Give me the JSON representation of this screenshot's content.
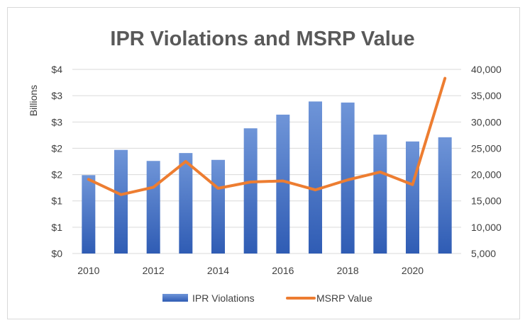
{
  "chart_data": {
    "type": "bar",
    "title": "IPR Violations and MSRP Value",
    "ylabel": "Billions",
    "xlabel": "",
    "categories": [
      2010,
      2011,
      2012,
      2013,
      2014,
      2015,
      2016,
      2017,
      2018,
      2019,
      2020,
      2021
    ],
    "x_tick_labels": [
      "2010",
      "2012",
      "2014",
      "2016",
      "2018",
      "2020"
    ],
    "y_left_ticks": [
      "$0",
      "$1",
      "$1",
      "$2",
      "$2",
      "$3",
      "$3",
      "$4"
    ],
    "y_right_ticks": [
      "5,000",
      "10,000",
      "15,000",
      "20,000",
      "25,000",
      "30,000",
      "35,000",
      "40,000"
    ],
    "y_left_range": [
      0,
      3.5
    ],
    "y_right_range": [
      5000,
      40000
    ],
    "grid": true,
    "legend_position": "bottom",
    "series": [
      {
        "name": "IPR Violations",
        "kind": "bar",
        "axis": "left",
        "color": "#4472c4",
        "values": [
          1.49,
          1.97,
          1.76,
          1.91,
          1.78,
          2.38,
          2.64,
          2.89,
          2.87,
          2.26,
          2.13,
          2.21
        ]
      },
      {
        "name": "MSRP Value",
        "kind": "line",
        "axis": "right",
        "color": "#ed7d31",
        "values": [
          19100,
          16200,
          17600,
          22500,
          17400,
          18600,
          18800,
          17100,
          19000,
          20500,
          18100,
          38300
        ]
      }
    ]
  }
}
